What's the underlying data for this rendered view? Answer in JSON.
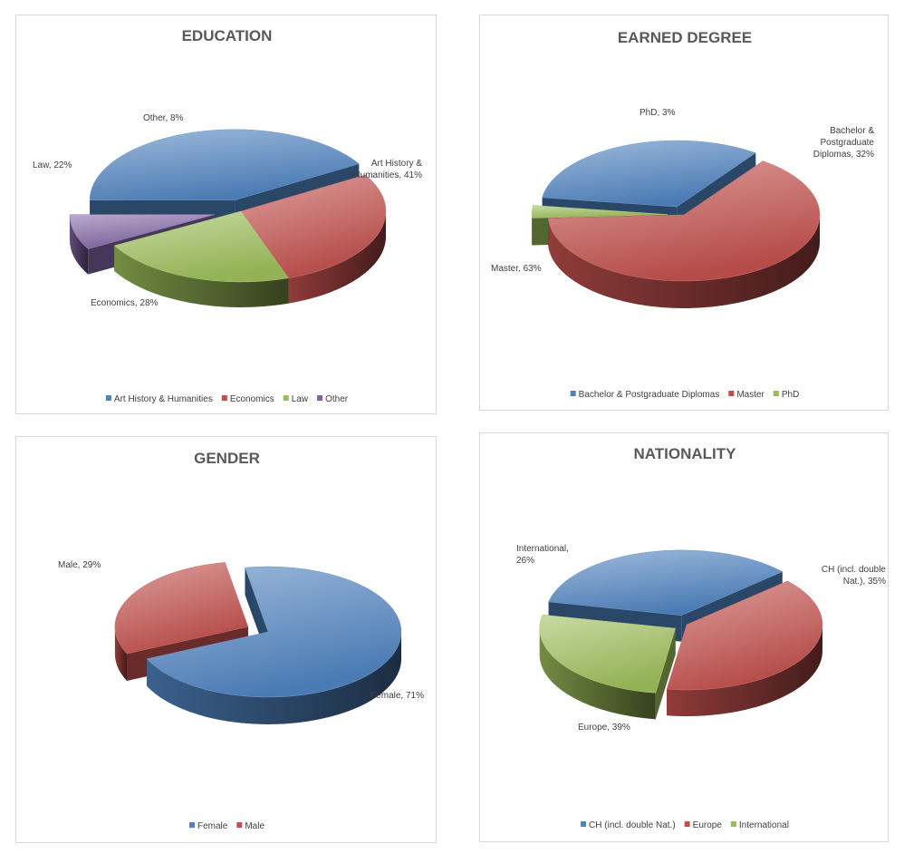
{
  "chart_data": [
    {
      "type": "pie",
      "title": "EDUCATION",
      "categories": [
        "Art History & Humanities",
        "Economics",
        "Law",
        "Other"
      ],
      "values": [
        41,
        28,
        22,
        8
      ],
      "labels": [
        [
          "Art History &",
          "Humanities, 41%"
        ],
        [
          "Economics, 28%"
        ],
        [
          "Law, 22%"
        ],
        [
          "Other, 8%"
        ]
      ],
      "colors": [
        "#4f81bd",
        "#c0504d",
        "#9bbb59",
        "#8064a2"
      ],
      "legend": "bottom",
      "exploded": true
    },
    {
      "type": "pie",
      "title": "EARNED DEGREE",
      "categories": [
        "Bachelor & Postgraduate Diplomas",
        "Master",
        "PhD"
      ],
      "values": [
        32,
        63,
        3
      ],
      "labels": [
        [
          "Bachelor &",
          "Postgraduate",
          "Diplomas, 32%"
        ],
        [
          "Master, 63%"
        ],
        [
          "PhD, 3%"
        ]
      ],
      "colors": [
        "#4f81bd",
        "#c0504d",
        "#9bbb59"
      ],
      "legend": "bottom",
      "exploded": true
    },
    {
      "type": "pie",
      "title": "GENDER",
      "categories": [
        "Female",
        "Male"
      ],
      "values": [
        71,
        29
      ],
      "labels": [
        [
          "Female, 71%"
        ],
        [
          "Male, 29%"
        ]
      ],
      "colors": [
        "#4f81bd",
        "#c0504d"
      ],
      "legend": "bottom",
      "exploded": true
    },
    {
      "type": "pie",
      "title": "NATIONALITY",
      "categories": [
        "CH (incl. double Nat.)",
        "Europe",
        "International"
      ],
      "values": [
        35,
        39,
        26
      ],
      "labels": [
        [
          "CH (incl. double",
          "Nat.), 35%"
        ],
        [
          "Europe, 39%"
        ],
        [
          "International,",
          "26%"
        ]
      ],
      "colors": [
        "#4f81bd",
        "#c0504d",
        "#9bbb59"
      ],
      "legend": "bottom",
      "exploded": true
    }
  ]
}
